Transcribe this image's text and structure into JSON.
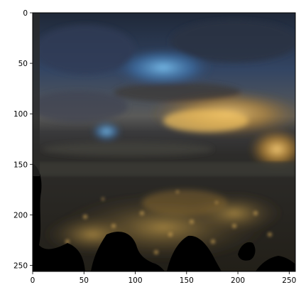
{
  "figure": {
    "type": "image_plot",
    "image_description_hidden": "",
    "x_axis": {
      "range": [
        0,
        256
      ],
      "ticks": [
        "0",
        "50",
        "100",
        "150",
        "200",
        "250"
      ],
      "tick_values": [
        0,
        50,
        100,
        150,
        200,
        250
      ]
    },
    "y_axis": {
      "range": [
        0,
        256
      ],
      "inverted": true,
      "ticks": [
        "0",
        "50",
        "100",
        "150",
        "200",
        "250"
      ],
      "tick_values": [
        0,
        50,
        100,
        150,
        200,
        250
      ]
    },
    "colors": {
      "sky_dark": "#2a3346",
      "sky_blue": "#3f6aa0",
      "sky_bright": "#6fb0e0",
      "sunset_gold": "#e0a43a",
      "city_dark": "#2b2a24",
      "city_lights": "#b48a3a",
      "mask_black": "#000000",
      "frame": "#000000"
    }
  }
}
